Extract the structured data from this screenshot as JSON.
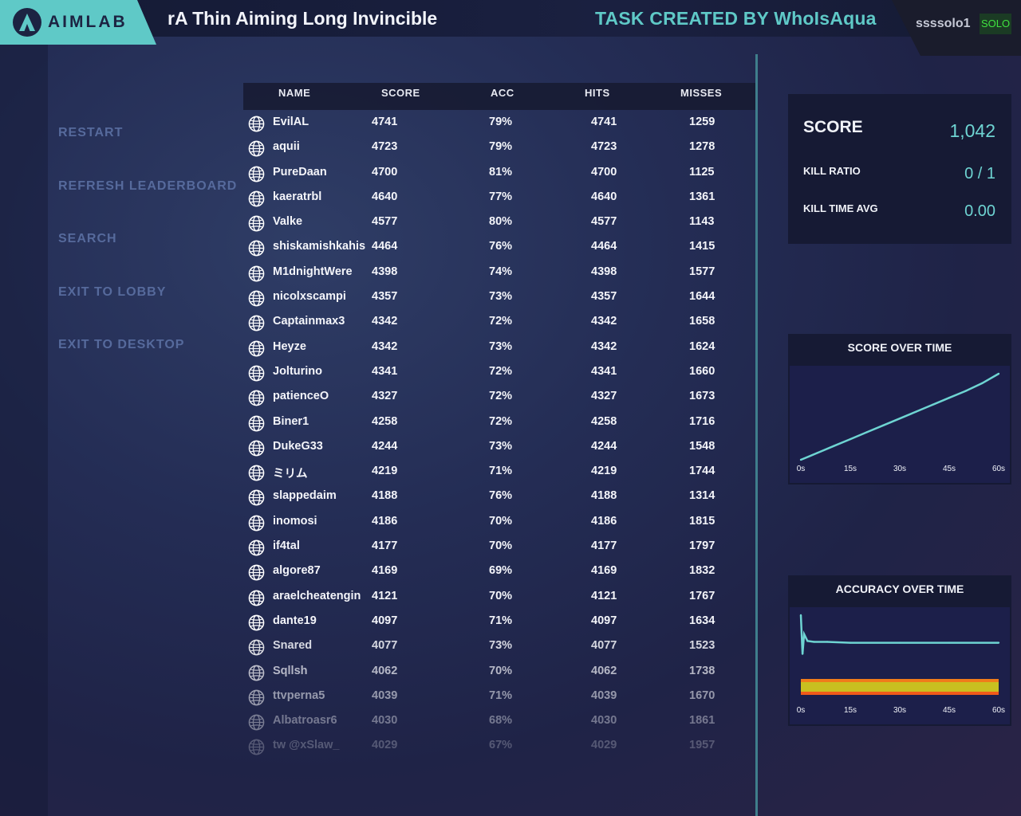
{
  "header": {
    "logo_text": "AIMLAB",
    "task_title": "rA Thin Aiming Long Invincible",
    "creator": "TASK CREATED BY WhoIsAqua",
    "username": "ssssolo1",
    "mode_badge": "SOLO"
  },
  "menu": {
    "restart": "RESTART",
    "refresh": "REFRESH LEADERBOARD",
    "search": "SEARCH",
    "exit_lobby": "EXIT TO LOBBY",
    "exit_desktop": "EXIT TO DESKTOP"
  },
  "leaderboard": {
    "headers": [
      "NAME",
      "SCORE",
      "ACC",
      "HITS",
      "MISSES"
    ],
    "rows": [
      {
        "name": "EvilAL",
        "score": "4741",
        "acc": "79%",
        "hits": "4741",
        "misses": "1259"
      },
      {
        "name": "aquii",
        "score": "4723",
        "acc": "79%",
        "hits": "4723",
        "misses": "1278"
      },
      {
        "name": "PureDaan",
        "score": "4700",
        "acc": "81%",
        "hits": "4700",
        "misses": "1125"
      },
      {
        "name": "kaeratrbl",
        "score": "4640",
        "acc": "77%",
        "hits": "4640",
        "misses": "1361"
      },
      {
        "name": "Valke",
        "score": "4577",
        "acc": "80%",
        "hits": "4577",
        "misses": "1143"
      },
      {
        "name": "shiskamishkahis",
        "score": "4464",
        "acc": "76%",
        "hits": "4464",
        "misses": "1415"
      },
      {
        "name": "M1dnightWere",
        "score": "4398",
        "acc": "74%",
        "hits": "4398",
        "misses": "1577"
      },
      {
        "name": "nicolxscampi",
        "score": "4357",
        "acc": "73%",
        "hits": "4357",
        "misses": "1644"
      },
      {
        "name": "Captainmax3",
        "score": "4342",
        "acc": "72%",
        "hits": "4342",
        "misses": "1658"
      },
      {
        "name": "Heyze",
        "score": "4342",
        "acc": "73%",
        "hits": "4342",
        "misses": "1624"
      },
      {
        "name": "Jolturino",
        "score": "4341",
        "acc": "72%",
        "hits": "4341",
        "misses": "1660"
      },
      {
        "name": "patienceO",
        "score": "4327",
        "acc": "72%",
        "hits": "4327",
        "misses": "1673"
      },
      {
        "name": "Biner1",
        "score": "4258",
        "acc": "72%",
        "hits": "4258",
        "misses": "1716"
      },
      {
        "name": "DukeG33",
        "score": "4244",
        "acc": "73%",
        "hits": "4244",
        "misses": "1548"
      },
      {
        "name": "ミリム",
        "score": "4219",
        "acc": "71%",
        "hits": "4219",
        "misses": "1744"
      },
      {
        "name": "slappedaim",
        "score": "4188",
        "acc": "76%",
        "hits": "4188",
        "misses": "1314"
      },
      {
        "name": "inomosi",
        "score": "4186",
        "acc": "70%",
        "hits": "4186",
        "misses": "1815"
      },
      {
        "name": "if4tal",
        "score": "4177",
        "acc": "70%",
        "hits": "4177",
        "misses": "1797"
      },
      {
        "name": "algore87",
        "score": "4169",
        "acc": "69%",
        "hits": "4169",
        "misses": "1832"
      },
      {
        "name": "araelcheatengin",
        "score": "4121",
        "acc": "70%",
        "hits": "4121",
        "misses": "1767"
      },
      {
        "name": "dante19",
        "score": "4097",
        "acc": "71%",
        "hits": "4097",
        "misses": "1634"
      },
      {
        "name": "Snared",
        "score": "4077",
        "acc": "73%",
        "hits": "4077",
        "misses": "1523"
      },
      {
        "name": "Sqllsh",
        "score": "4062",
        "acc": "70%",
        "hits": "4062",
        "misses": "1738"
      },
      {
        "name": "ttvperna5",
        "score": "4039",
        "acc": "71%",
        "hits": "4039",
        "misses": "1670"
      },
      {
        "name": "Albatroasr6",
        "score": "4030",
        "acc": "68%",
        "hits": "4030",
        "misses": "1861"
      },
      {
        "name": "tw @xSlaw_",
        "score": "4029",
        "acc": "67%",
        "hits": "4029",
        "misses": "1957"
      }
    ]
  },
  "stats": {
    "score_label": "SCORE",
    "score_value": "1,042",
    "kill_ratio_label": "KILL RATIO",
    "kill_ratio_value": "0 / 1",
    "kill_time_label": "KILL TIME AVG",
    "kill_time_value": "0.00"
  },
  "charts": {
    "score_title": "SCORE OVER TIME",
    "accuracy_title": "ACCURACY OVER TIME",
    "x_ticks": [
      "0s",
      "15s",
      "30s",
      "45s",
      "60s"
    ],
    "line_color": "#6ed4d2"
  },
  "chart_data": [
    {
      "type": "line",
      "title": "SCORE OVER TIME",
      "x": [
        0,
        5,
        10,
        15,
        20,
        25,
        30,
        35,
        40,
        45,
        50,
        55,
        60
      ],
      "y": [
        0.0,
        0.08,
        0.16,
        0.24,
        0.32,
        0.4,
        0.48,
        0.56,
        0.64,
        0.72,
        0.8,
        0.89,
        1.0
      ],
      "xlabel": "",
      "ylabel": "",
      "xlim": [
        0,
        60
      ],
      "ylim": [
        0,
        1
      ],
      "x_tick_labels": [
        "0s",
        "15s",
        "30s",
        "45s",
        "60s"
      ]
    },
    {
      "type": "line",
      "title": "ACCURACY OVER TIME",
      "x": [
        0,
        0.5,
        1,
        2,
        4,
        8,
        15,
        30,
        45,
        60
      ],
      "y": [
        1.0,
        0.55,
        0.78,
        0.7,
        0.69,
        0.69,
        0.68,
        0.68,
        0.68,
        0.68
      ],
      "xlabel": "",
      "ylabel": "",
      "xlim": [
        0,
        60
      ],
      "ylim": [
        0,
        1
      ],
      "x_tick_labels": [
        "0s",
        "15s",
        "30s",
        "45s",
        "60s"
      ]
    }
  ]
}
